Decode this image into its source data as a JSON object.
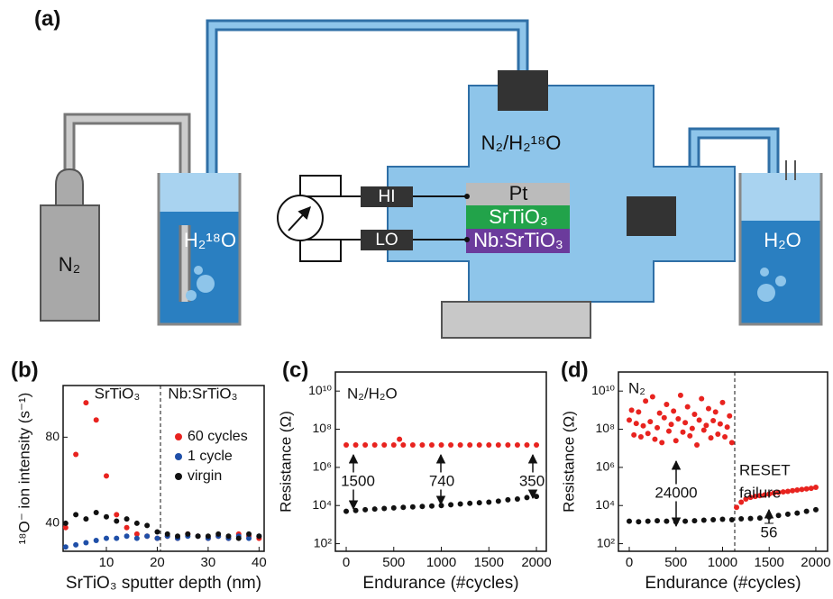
{
  "diagram": {
    "panel_label": "(a)",
    "gas": "N₂",
    "source_water": "H₂¹⁸O",
    "chamber": "N₂/H₂¹⁸O",
    "hi": "HI",
    "lo": "LO",
    "top_layer": "Pt",
    "middle_layer": "SrTiO₃",
    "bottom_layer": "Nb:SrTiO₃",
    "trap_water": "H₂O"
  },
  "chart_data": [
    {
      "type": "scatter",
      "label": "(b)",
      "x_label": "SrTiO₃ sputter depth (nm)",
      "y_label": "¹⁸O⁻ ion intensity (s⁻¹)",
      "annotations": [
        "SrTiO₃",
        "Nb:SrTiO₃"
      ],
      "xlim": [
        1.5,
        41
      ],
      "ylim": [
        27,
        104
      ],
      "xticks": [
        10,
        20,
        30,
        40
      ],
      "yticks": [
        40,
        80
      ],
      "log_y": false,
      "series": [
        {
          "name": "60 cycles",
          "color": "#e8231f",
          "x": [
            2,
            4,
            6,
            8,
            10,
            12,
            14,
            16,
            18,
            20,
            22,
            24,
            26,
            28,
            30,
            32,
            34,
            36,
            38,
            40
          ],
          "values": [
            38,
            72,
            96,
            88,
            62,
            44,
            38,
            35,
            34,
            33,
            34,
            33,
            35,
            34,
            33,
            34,
            33,
            35,
            34,
            33
          ]
        },
        {
          "name": "1 cycle",
          "color": "#1f4fa8",
          "x": [
            2,
            4,
            6,
            8,
            10,
            12,
            14,
            16,
            18,
            20,
            22,
            24,
            26,
            28,
            30,
            32,
            34,
            36,
            38,
            40
          ],
          "values": [
            29,
            30,
            31,
            32,
            33,
            33,
            34,
            33,
            34,
            33,
            34,
            33,
            34,
            34,
            33,
            34,
            33,
            34,
            33,
            34
          ]
        },
        {
          "name": "virgin",
          "color": "#111111",
          "x": [
            2,
            4,
            6,
            8,
            10,
            12,
            14,
            16,
            18,
            20,
            22,
            24,
            26,
            28,
            30,
            32,
            34,
            36,
            38,
            40
          ],
          "values": [
            40,
            44,
            42,
            45,
            43,
            41,
            42,
            40,
            39,
            36,
            35,
            34,
            35,
            34,
            34,
            35,
            34,
            33,
            35,
            34
          ]
        }
      ]
    },
    {
      "type": "scatter",
      "label": "(c)",
      "x_label": "Endurance (#cycles)",
      "y_label": "Resistance (Ω)",
      "annotations": [
        "N₂/H₂O",
        "1500",
        "740",
        "350"
      ],
      "xlim": [
        -114,
        2104
      ],
      "ylim": [
        40,
        100000000000
      ],
      "xticks": [
        0,
        500,
        1000,
        1500,
        2000
      ],
      "yticks": [
        {
          "value": 100,
          "label": "10²"
        },
        {
          "value": 10000,
          "label": "10⁴"
        },
        {
          "value": 1000000,
          "label": "10⁶"
        },
        {
          "value": 100000000,
          "label": "10⁸"
        },
        {
          "value": 10000000000,
          "label": "10¹⁰"
        }
      ],
      "log_y": true,
      "series": [
        {
          "color": "#e8231f",
          "x": [
            0,
            100,
            200,
            300,
            400,
            500,
            560,
            600,
            700,
            800,
            900,
            1000,
            1100,
            1200,
            1300,
            1400,
            1500,
            1600,
            1700,
            1800,
            1900,
            2000
          ],
          "values": [
            15000000,
            15000000,
            15000000,
            15000000,
            15000000,
            15000000,
            30000000,
            15000000,
            15000000,
            15000000,
            15000000,
            15000000,
            15000000,
            15000000,
            15000000,
            15000000,
            15000000,
            15000000,
            15000000,
            15000000,
            15000000,
            15000000
          ]
        },
        {
          "color": "#111111",
          "x": [
            0,
            100,
            200,
            300,
            400,
            500,
            600,
            700,
            800,
            900,
            1000,
            1100,
            1200,
            1300,
            1400,
            1500,
            1600,
            1700,
            1800,
            1900,
            2000
          ],
          "values": [
            5000,
            5500,
            6000,
            6500,
            7000,
            7500,
            8000,
            8500,
            9000,
            9500,
            10000,
            11000,
            12000,
            13000,
            14000,
            15000,
            17000,
            20000,
            22000,
            26000,
            30000
          ]
        }
      ]
    },
    {
      "type": "scatter",
      "label": "(d)",
      "x_label": "Endurance (#cycles)",
      "y_label": "Resistance (Ω)",
      "annotations": [
        "N₂",
        "RESET",
        "failure",
        "24000",
        "56"
      ],
      "xlim": [
        -116,
        2126
      ],
      "ylim": [
        40,
        100000000000
      ],
      "xticks": [
        0,
        500,
        1000,
        1500,
        2000
      ],
      "yticks": [
        {
          "value": 100,
          "label": "10²"
        },
        {
          "value": 10000,
          "label": "10⁴"
        },
        {
          "value": 1000000,
          "label": "10⁶"
        },
        {
          "value": 100000000,
          "label": "10⁸"
        },
        {
          "value": 10000000000,
          "label": "10¹⁰"
        }
      ],
      "log_y": true,
      "series": [
        {
          "color": "#e8231f",
          "x": [
            0,
            25,
            50,
            75,
            100,
            125,
            150,
            175,
            200,
            225,
            250,
            275,
            300,
            325,
            350,
            375,
            400,
            425,
            450,
            475,
            500,
            525,
            550,
            575,
            600,
            625,
            650,
            675,
            700,
            725,
            750,
            775,
            800,
            825,
            850,
            875,
            900,
            925,
            950,
            975,
            1000,
            1025,
            1050,
            1075,
            1100,
            1150,
            1200,
            1250,
            1300,
            1350,
            1400,
            1450,
            1500,
            1550,
            1600,
            1650,
            1700,
            1750,
            1800,
            1850,
            1900,
            1950,
            2000
          ],
          "values": [
            300000000,
            1000000000,
            50000000,
            200000000,
            800000000,
            40000000,
            150000000,
            3000000000,
            60000000,
            250000000,
            5000000000,
            30000000,
            120000000,
            700000000,
            20000000,
            400000000,
            2000000000,
            80000000,
            180000000,
            900000000,
            25000000,
            350000000,
            6000000000,
            70000000,
            220000000,
            1500000000,
            45000000,
            110000000,
            600000000,
            15000000,
            300000000,
            4000000000,
            90000000,
            160000000,
            1200000000,
            35000000,
            280000000,
            800000000,
            55000000,
            190000000,
            2500000000,
            40000000,
            130000000,
            500000000,
            20000000,
            8000,
            15000,
            22000,
            27000,
            30000,
            33000,
            36000,
            40000,
            45000,
            48000,
            52000,
            55000,
            60000,
            65000,
            70000,
            75000,
            80000,
            90000
          ]
        },
        {
          "color": "#111111",
          "x": [
            0,
            100,
            200,
            300,
            400,
            500,
            600,
            700,
            800,
            900,
            1000,
            1100,
            1200,
            1300,
            1400,
            1500,
            1600,
            1700,
            1800,
            1900,
            2000
          ],
          "values": [
            1500,
            1400,
            1500,
            1600,
            1500,
            1400,
            1500,
            1600,
            1700,
            1800,
            1900,
            1800,
            2000,
            2100,
            2200,
            2500,
            3000,
            3500,
            4000,
            5000,
            6000
          ]
        }
      ]
    }
  ]
}
